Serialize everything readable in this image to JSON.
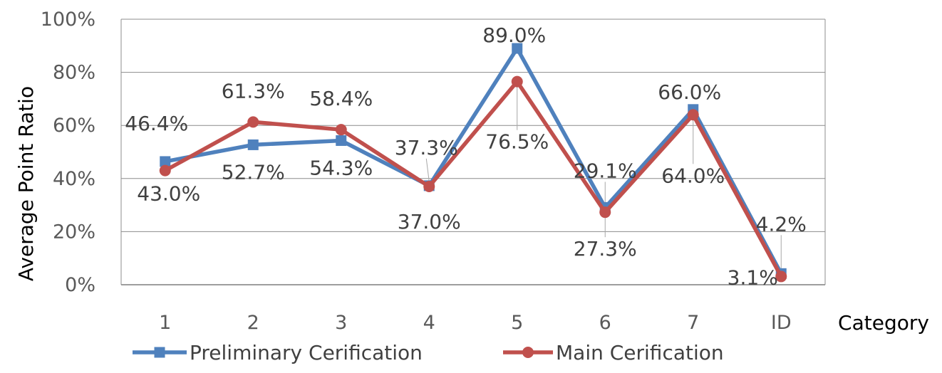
{
  "chart_data": {
    "type": "line",
    "xlabel": "Category",
    "ylabel": "Average Point Ratio",
    "categories": [
      "1",
      "2",
      "3",
      "4",
      "5",
      "6",
      "7",
      "ID"
    ],
    "ylim": [
      0,
      100
    ],
    "yticks": [
      "0%",
      "20%",
      "40%",
      "60%",
      "80%",
      "100%"
    ],
    "grid": true,
    "legend_position": "bottom",
    "series": [
      {
        "name": "Preliminary Cerification",
        "color": "#4f81bd",
        "marker": "square",
        "values": [
          46.4,
          52.7,
          54.3,
          37.3,
          89.0,
          29.1,
          66.0,
          4.2
        ],
        "labels": [
          "46.4%",
          "52.7%",
          "54.3%",
          "37.3%",
          "89.0%",
          "29.1%",
          "66.0%",
          "4.2%"
        ]
      },
      {
        "name": "Main Cerification",
        "color": "#c0504d",
        "marker": "circle",
        "values": [
          43.0,
          61.3,
          58.4,
          37.0,
          76.5,
          27.3,
          64.0,
          3.1
        ],
        "labels": [
          "43.0%",
          "61.3%",
          "58.4%",
          "37.0%",
          "76.5%",
          "27.3%",
          "64.0%",
          "3.1%"
        ]
      }
    ]
  }
}
